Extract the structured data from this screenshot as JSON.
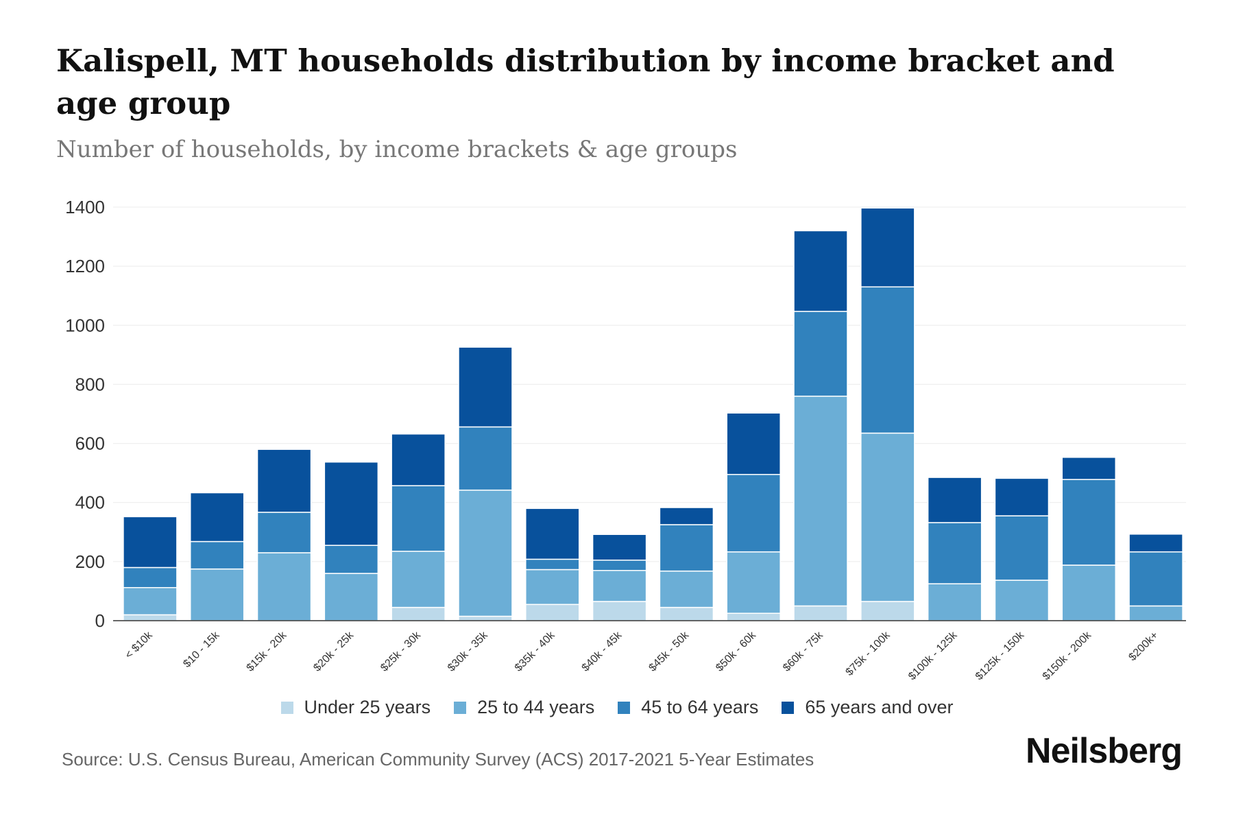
{
  "header": {
    "title": "Kalispell, MT households distribution by income bracket and age group",
    "subtitle": "Number of households, by income brackets & age groups"
  },
  "chart_data": {
    "type": "bar",
    "stacked": true,
    "title": "Kalispell, MT households distribution by income bracket and age group",
    "subtitle": "Number of households, by income brackets & age groups",
    "xlabel": "",
    "ylabel": "",
    "ylim": [
      0,
      1400
    ],
    "yticks": [
      0,
      200,
      400,
      600,
      800,
      1000,
      1200,
      1400
    ],
    "grid": true,
    "legend_position": "bottom",
    "categories": [
      "< $10k",
      "$10 - 15k",
      "$15k - 20k",
      "$20k - 25k",
      "$25k - 30k",
      "$30k - 35k",
      "$35k - 40k",
      "$40k - 45k",
      "$45k - 50k",
      "$50k - 60k",
      "$60k - 75k",
      "$75k - 100k",
      "$100k - 125k",
      "$125k - 150k",
      "$150k - 200k",
      "$200k+"
    ],
    "series": [
      {
        "name": "Under 25 years",
        "color": "#bcd9ea",
        "values": [
          20,
          0,
          0,
          0,
          45,
          15,
          55,
          65,
          45,
          25,
          50,
          65,
          0,
          0,
          0,
          0
        ]
      },
      {
        "name": "25 to 44 years",
        "color": "#6baed6",
        "values": [
          92,
          175,
          230,
          160,
          190,
          427,
          118,
          105,
          123,
          208,
          710,
          570,
          125,
          137,
          188,
          50
        ]
      },
      {
        "name": "45 to 64 years",
        "color": "#3182bd",
        "values": [
          68,
          93,
          137,
          95,
          222,
          214,
          35,
          35,
          157,
          262,
          287,
          495,
          207,
          218,
          290,
          183
        ]
      },
      {
        "name": "65 years and over",
        "color": "#08519c",
        "values": [
          172,
          165,
          213,
          282,
          175,
          270,
          172,
          87,
          58,
          208,
          273,
          267,
          153,
          127,
          75,
          60
        ]
      }
    ]
  },
  "footer": {
    "source": "Source: U.S. Census Bureau, American Community Survey (ACS) 2017-2021 5-Year Estimates",
    "logo": "Neilsberg"
  }
}
